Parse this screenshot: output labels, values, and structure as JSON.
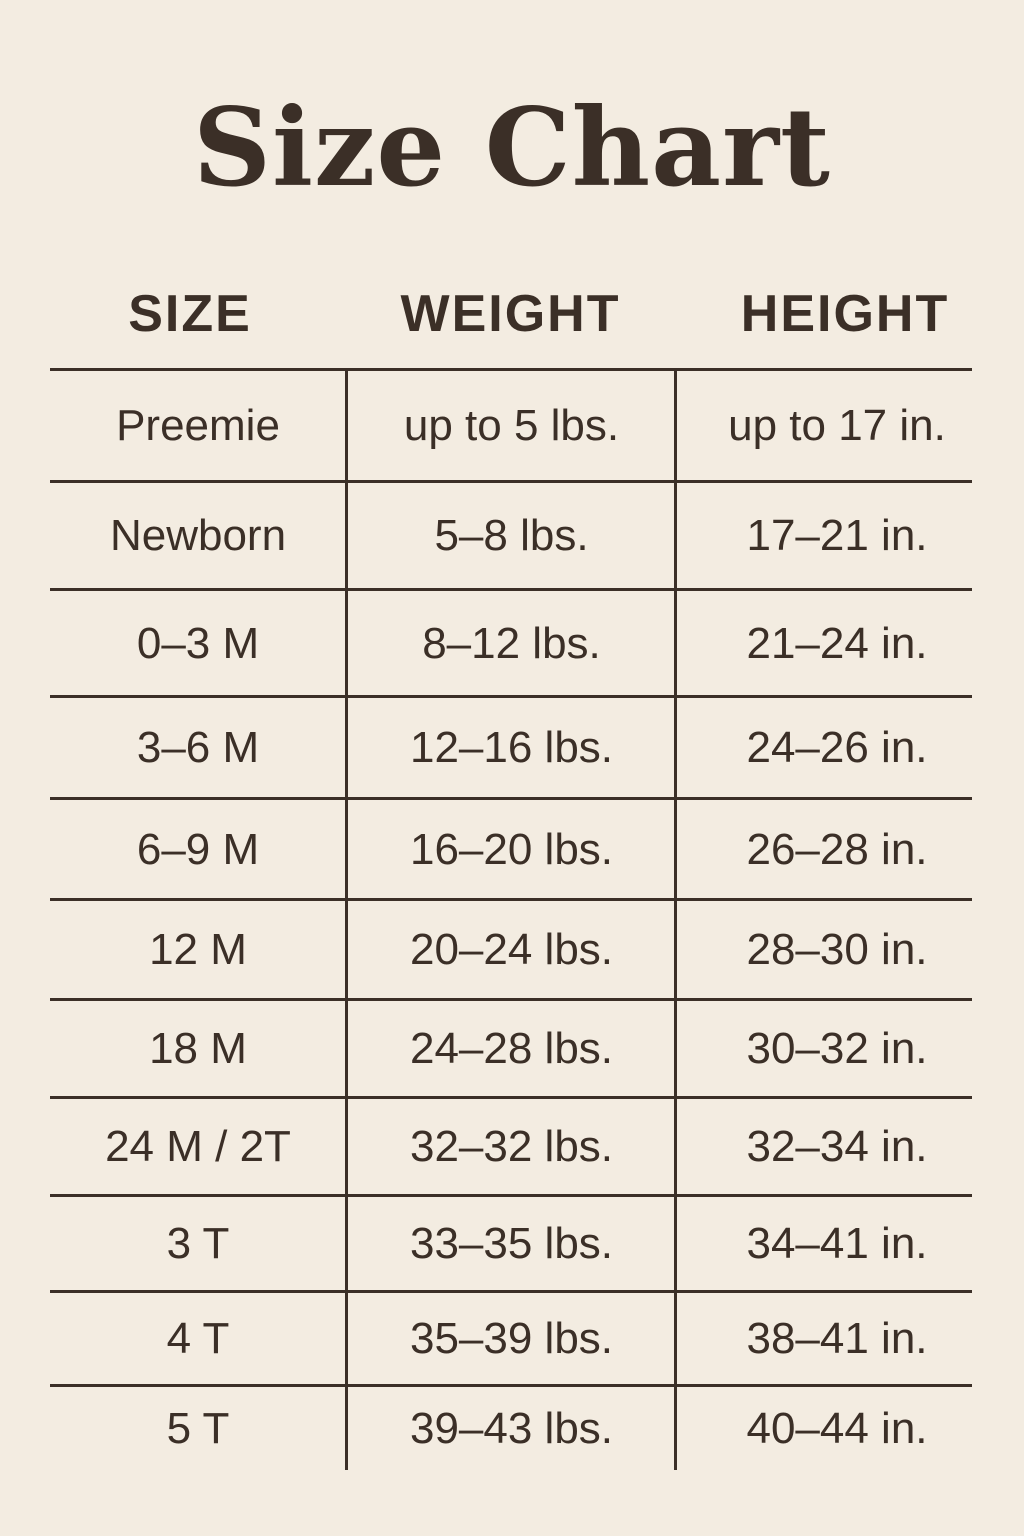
{
  "title": "Size Chart",
  "headers": [
    "SIZE",
    "WEIGHT",
    "HEIGHT"
  ],
  "rows": [
    [
      "Preemie",
      "up to 5 lbs.",
      "up to 17 in."
    ],
    [
      "Newborn",
      "5–8 lbs.",
      "17–21 in."
    ],
    [
      "0–3 M",
      "8–12 lbs.",
      "21–24 in."
    ],
    [
      "3–6 M",
      "12–16 lbs.",
      "24–26 in."
    ],
    [
      "6–9 M",
      "16–20 lbs.",
      "26–28 in."
    ],
    [
      "12 M",
      "20–24 lbs.",
      "28–30 in."
    ],
    [
      "18 M",
      "24–28 lbs.",
      "30–32 in."
    ],
    [
      "24 M / 2T",
      "32–32 lbs.",
      "32–34 in."
    ],
    [
      "3 T",
      "33–35 lbs.",
      "34–41 in."
    ],
    [
      "4 T",
      "35–39 lbs.",
      "38–41 in."
    ],
    [
      "5 T",
      "39–43 lbs.",
      "40–44 in."
    ]
  ],
  "colors": {
    "background": "#f3ece1",
    "text": "#3b2f27"
  }
}
